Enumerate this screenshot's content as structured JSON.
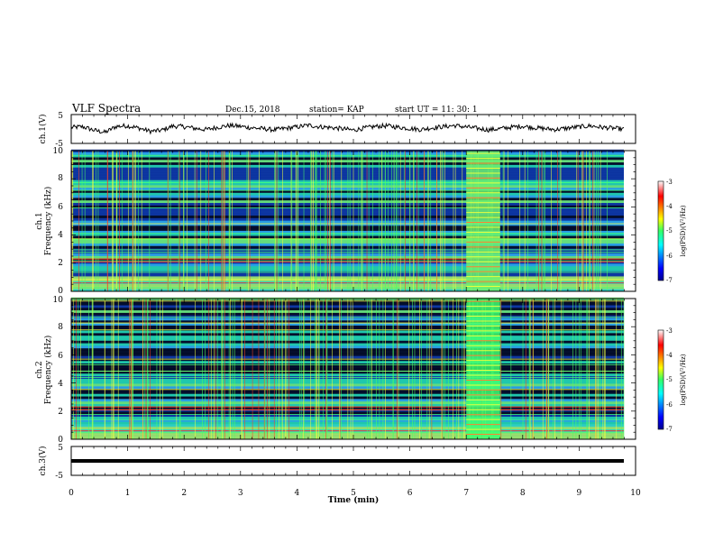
{
  "header": {
    "title": "VLF Spectra",
    "date": "Dec.15, 2018",
    "station": "station= KAP",
    "start": "start UT =   11: 30: 1"
  },
  "chart_data": [
    {
      "type": "line",
      "ylabel": "ch.1(V)",
      "ylim": [
        -5,
        5
      ],
      "yticks": [
        "5",
        "-5"
      ],
      "xlim": [
        0,
        10
      ],
      "series": [
        {
          "values_description_note": "",
          "values": [
            0.5,
            0.8,
            -0.4,
            -1.2,
            0.9,
            1.1,
            0.3,
            -0.8,
            -0.5,
            1.0,
            0.8,
            0.2,
            -0.2,
            0.6,
            1.2,
            0.9,
            0.4,
            0.1,
            -0.3,
            0.2,
            0.7,
            1.3,
            0.8,
            0.5,
            0.1,
            -0.4,
            0.3,
            0.9,
            1.1,
            0.6,
            0.2,
            -0.2,
            0.4,
            0.8,
            1.2,
            0.7,
            0.2,
            -0.3,
            0.1,
            0.6,
            1.0,
            0.5,
            0.1,
            -0.2,
            0.3,
            0.7,
            1.1,
            0.6,
            0.3,
            -0.1
          ]
        }
      ]
    },
    {
      "type": "heatmap",
      "ylabel_top": "ch.1",
      "ylabel": "Frequency (kHz)",
      "ylim": [
        0,
        10
      ],
      "yticks": [
        "0",
        "2",
        "4",
        "6",
        "8",
        "10"
      ],
      "xlim": [
        0,
        10
      ],
      "colorbar": {
        "label": "log(PSD)(V²/Hz)",
        "range": [
          -7,
          -3
        ],
        "ticks": [
          "-3",
          "-4",
          "-5",
          "-6",
          "-7"
        ]
      }
    },
    {
      "type": "heatmap",
      "ylabel_top": "ch.2",
      "ylabel": "Frequency (kHz)",
      "ylim": [
        0,
        10
      ],
      "yticks": [
        "0",
        "2",
        "4",
        "6",
        "8",
        "10"
      ],
      "xlim": [
        0,
        10
      ],
      "colorbar": {
        "label": "log(PSD)(V²/Hz)",
        "range": [
          -7,
          -3
        ],
        "ticks": [
          "-3",
          "-4",
          "-5",
          "-6",
          "-7"
        ]
      }
    },
    {
      "type": "line",
      "ylabel": "ch.3(V)",
      "ylim": [
        -5,
        5
      ],
      "yticks": [
        "5",
        "-5"
      ],
      "xlim": [
        0,
        10
      ],
      "series": [
        {
          "values": [
            0,
            0
          ]
        }
      ]
    }
  ],
  "xaxis": {
    "label": "Time (min)",
    "ticks": [
      "0",
      "1",
      "2",
      "3",
      "4",
      "5",
      "6",
      "7",
      "8",
      "9",
      "10"
    ]
  }
}
